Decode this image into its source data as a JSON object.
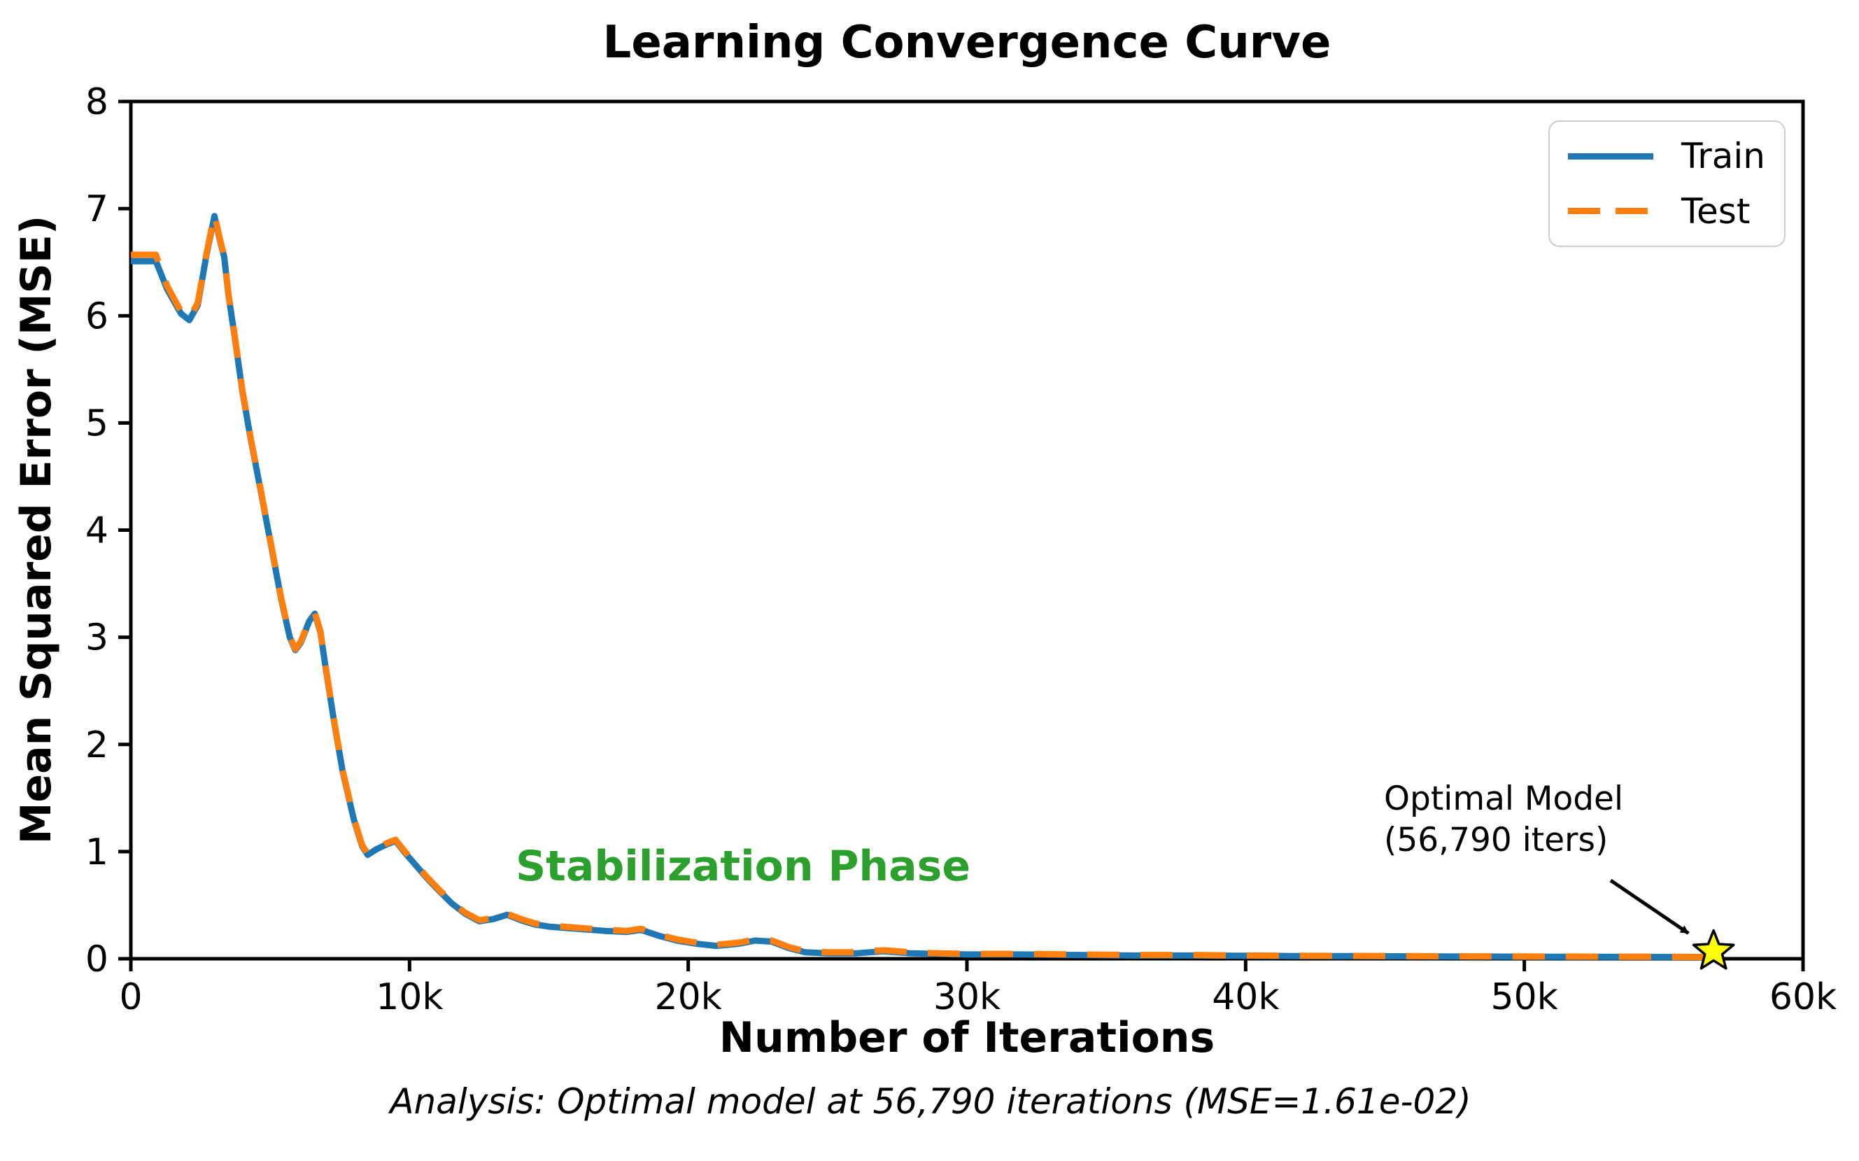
{
  "title": "Learning Convergence Curve",
  "xlabel": "Number of Iterations",
  "ylabel": "Mean Squared Error (MSE)",
  "footer": "Analysis: Optimal model at 56,790 iterations (MSE=1.61e-02)",
  "annotations": {
    "phase_label": "Stabilization Phase",
    "phase_color": "#2ca02c",
    "optimal_line1": "Optimal Model",
    "optimal_line2": "(56,790 iters)",
    "optimal_x": 56790,
    "optimal_y": 0.0161,
    "star_fill": "#ffff00",
    "star_edge": "#000000"
  },
  "legend": {
    "items": [
      {
        "label": "Train",
        "color": "#1f77b4",
        "dash": "solid"
      },
      {
        "label": "Test",
        "color": "#ff7f0e",
        "dash": "dashed"
      }
    ]
  },
  "chart_data": {
    "type": "line",
    "title": "Learning Convergence Curve",
    "xlabel": "Number of Iterations",
    "ylabel": "Mean Squared Error (MSE)",
    "xlim": [
      0,
      60000
    ],
    "ylim": [
      0,
      8
    ],
    "grid": false,
    "legend_position": "upper right",
    "xticks": [
      {
        "v": 0,
        "label": "0"
      },
      {
        "v": 10000,
        "label": "10k"
      },
      {
        "v": 20000,
        "label": "20k"
      },
      {
        "v": 30000,
        "label": "30k"
      },
      {
        "v": 40000,
        "label": "40k"
      },
      {
        "v": 50000,
        "label": "50k"
      },
      {
        "v": 60000,
        "label": "60k"
      }
    ],
    "yticks": [
      {
        "v": 0,
        "label": "0"
      },
      {
        "v": 1,
        "label": "1"
      },
      {
        "v": 2,
        "label": "2"
      },
      {
        "v": 3,
        "label": "3"
      },
      {
        "v": 4,
        "label": "4"
      },
      {
        "v": 5,
        "label": "5"
      },
      {
        "v": 6,
        "label": "6"
      },
      {
        "v": 7,
        "label": "7"
      },
      {
        "v": 8,
        "label": "8"
      }
    ],
    "x": [
      0,
      900,
      1300,
      1800,
      2100,
      2400,
      2700,
      3000,
      3200,
      3350,
      3500,
      3700,
      4000,
      4300,
      4600,
      5000,
      5400,
      5700,
      5900,
      6100,
      6400,
      6600,
      6800,
      7000,
      7300,
      7600,
      8000,
      8300,
      8500,
      8800,
      9200,
      9500,
      9800,
      10200,
      10600,
      11000,
      11500,
      12000,
      12500,
      13000,
      13500,
      14000,
      14500,
      15000,
      16000,
      17000,
      17800,
      18300,
      19000,
      19600,
      20300,
      21000,
      21800,
      22400,
      23000,
      23600,
      24200,
      25000,
      26000,
      27000,
      28000,
      29000,
      30000,
      32000,
      34000,
      36000,
      38000,
      40000,
      42000,
      44000,
      46000,
      48000,
      50000,
      52000,
      54000,
      56790
    ],
    "series": [
      {
        "name": "Train",
        "color": "#1f77b4",
        "style": "solid",
        "y": [
          6.51,
          6.51,
          6.25,
          6.02,
          5.96,
          6.1,
          6.55,
          6.93,
          6.7,
          6.55,
          6.2,
          5.85,
          5.3,
          4.85,
          4.45,
          3.9,
          3.35,
          3.0,
          2.88,
          2.95,
          3.15,
          3.22,
          3.05,
          2.7,
          2.2,
          1.75,
          1.3,
          1.05,
          0.97,
          1.02,
          1.07,
          1.1,
          1.0,
          0.88,
          0.76,
          0.65,
          0.52,
          0.42,
          0.35,
          0.37,
          0.41,
          0.36,
          0.32,
          0.3,
          0.28,
          0.26,
          0.25,
          0.27,
          0.21,
          0.17,
          0.14,
          0.12,
          0.14,
          0.17,
          0.16,
          0.1,
          0.06,
          0.05,
          0.05,
          0.07,
          0.05,
          0.045,
          0.04,
          0.04,
          0.035,
          0.03,
          0.03,
          0.028,
          0.025,
          0.024,
          0.022,
          0.02,
          0.019,
          0.018,
          0.017,
          0.0161
        ]
      },
      {
        "name": "Test",
        "color": "#ff7f0e",
        "style": "dashed",
        "y": [
          6.57,
          6.57,
          6.28,
          6.04,
          5.98,
          6.12,
          6.56,
          6.95,
          6.71,
          6.56,
          6.21,
          5.86,
          5.31,
          4.86,
          4.46,
          3.91,
          3.36,
          3.01,
          2.89,
          2.96,
          3.16,
          3.23,
          3.06,
          2.71,
          2.21,
          1.76,
          1.31,
          1.06,
          0.98,
          1.03,
          1.08,
          1.11,
          1.01,
          0.89,
          0.77,
          0.66,
          0.53,
          0.43,
          0.36,
          0.38,
          0.42,
          0.37,
          0.33,
          0.31,
          0.29,
          0.27,
          0.26,
          0.28,
          0.22,
          0.18,
          0.15,
          0.13,
          0.15,
          0.18,
          0.17,
          0.11,
          0.07,
          0.06,
          0.06,
          0.08,
          0.06,
          0.05,
          0.045,
          0.045,
          0.04,
          0.035,
          0.035,
          0.03,
          0.028,
          0.026,
          0.024,
          0.022,
          0.021,
          0.02,
          0.019,
          0.0161
        ]
      }
    ]
  }
}
